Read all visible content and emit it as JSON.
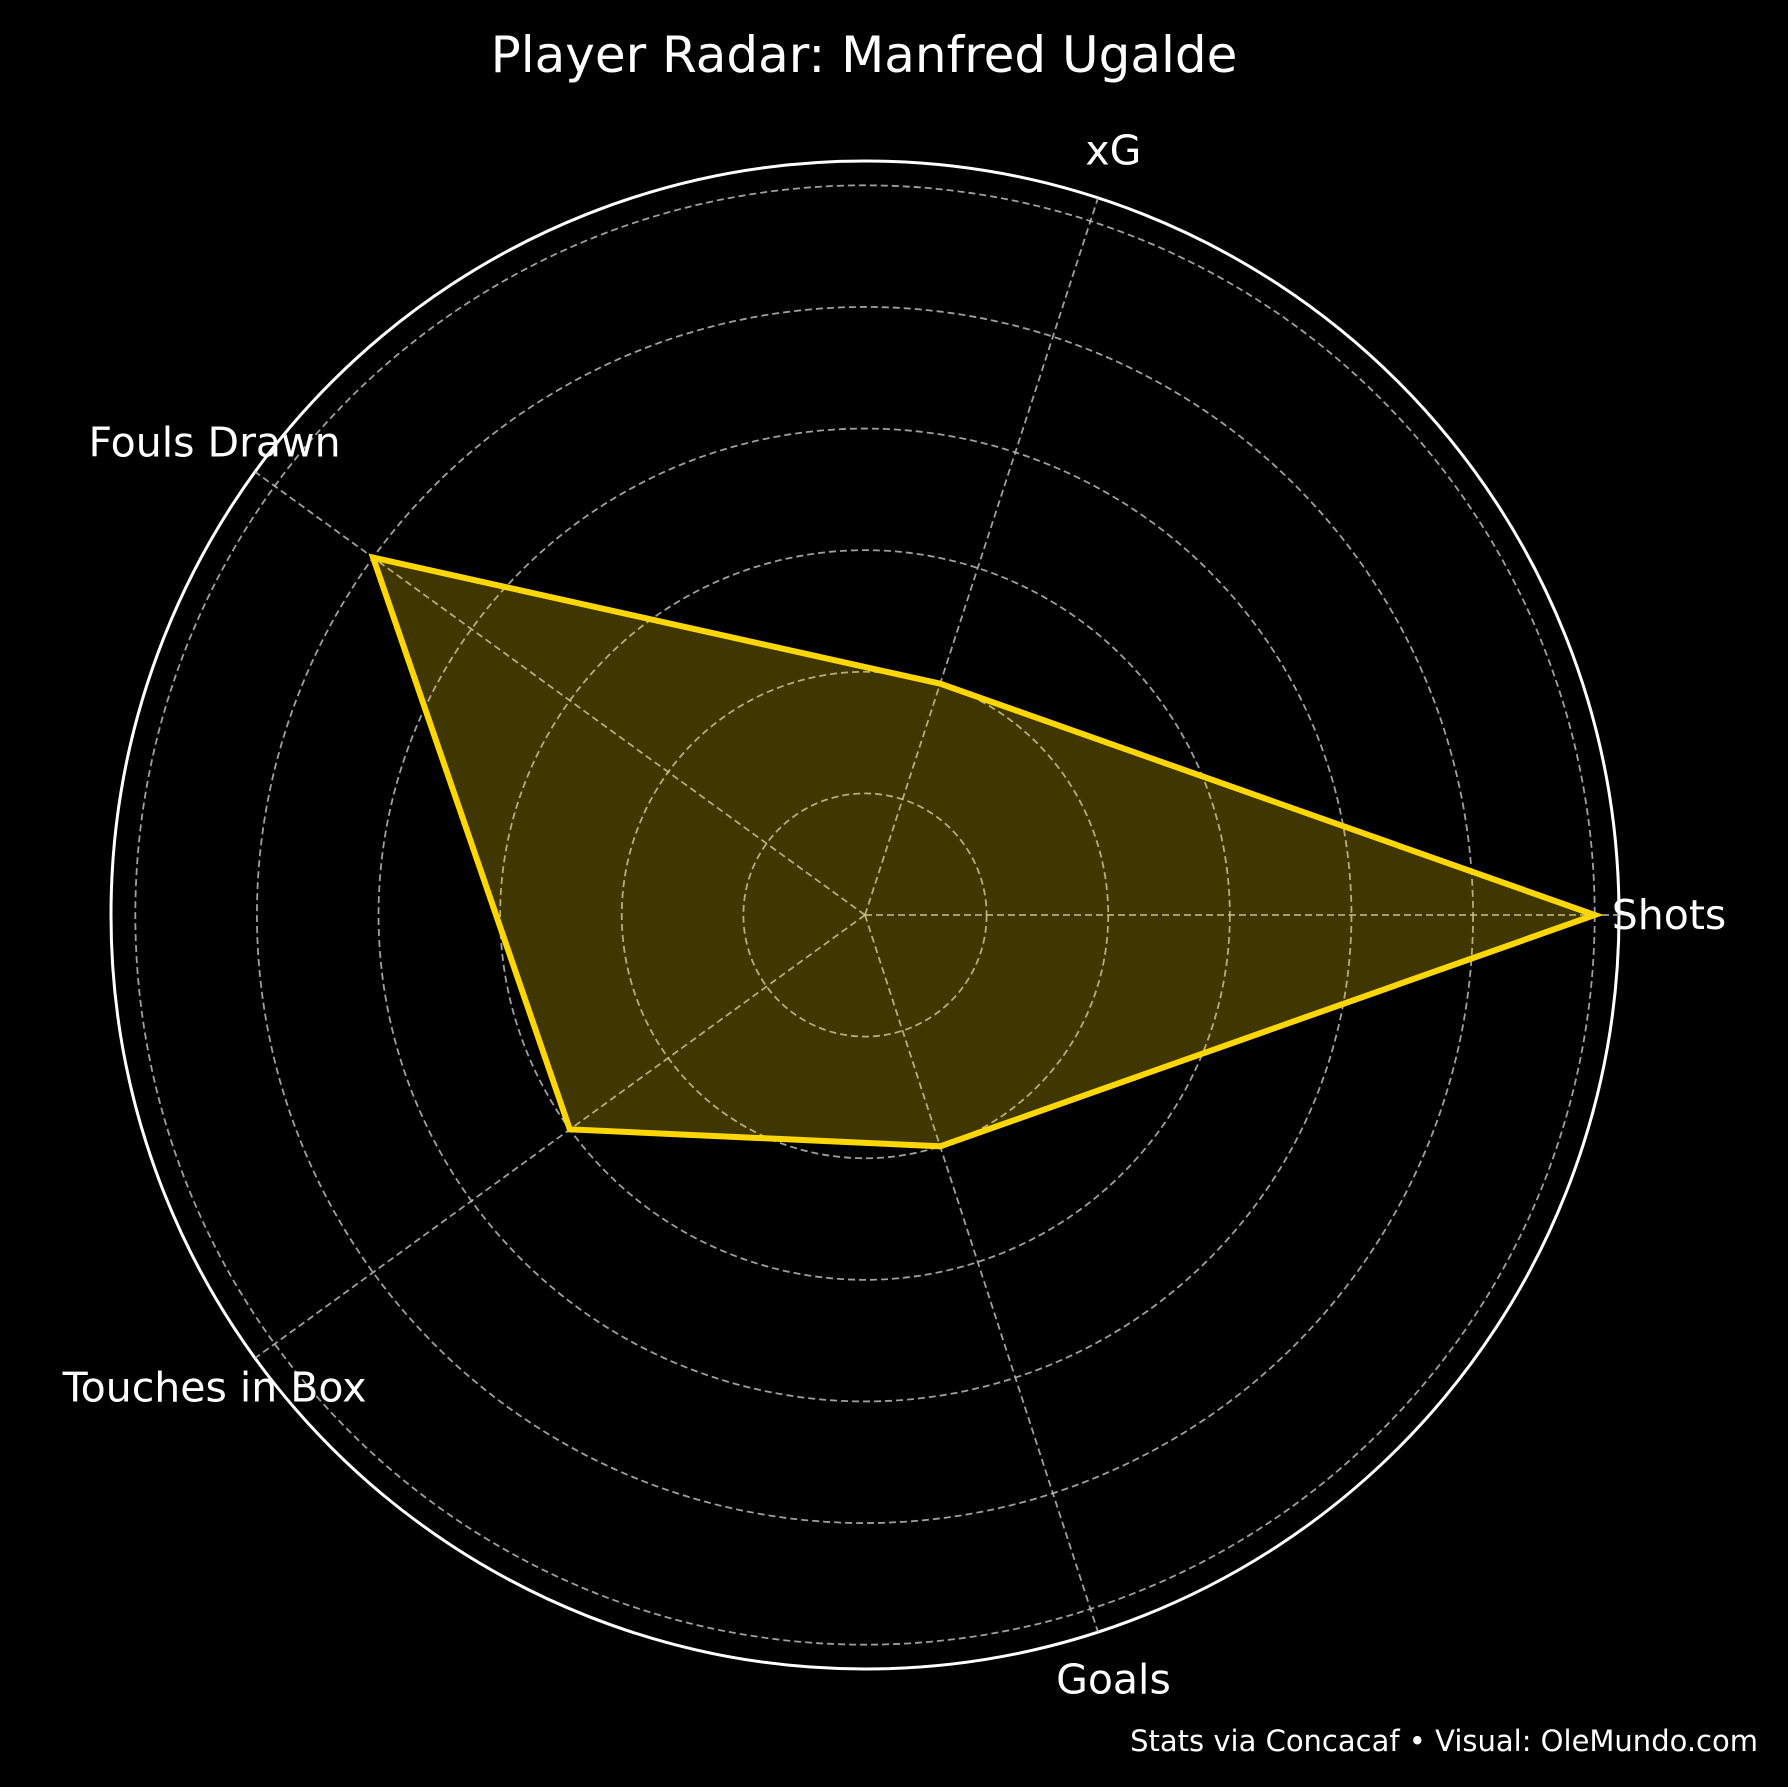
{
  "chart_data": {
    "type": "radar",
    "title": "Player Radar: Manfred Ugalde",
    "categories": [
      "Shots",
      "xG",
      "Fouls Drawn",
      "Touches in Box",
      "Goals"
    ],
    "series": [
      {
        "values": [
          6,
          2,
          5,
          3,
          2
        ]
      }
    ],
    "rlim": [
      0,
      6.2
    ],
    "rticks": [
      1,
      2,
      3,
      4,
      5,
      6
    ],
    "rtick_labels_shown": false,
    "grid": true,
    "grid_style": "dashed",
    "colors": {
      "background": "#000000",
      "line": "#FFD700",
      "fill": "#FFD700",
      "fill_alpha": 0.25,
      "grid": "#BBBBBB",
      "frame": "#FFFFFF"
    },
    "footer": "Stats via Concacaf • Visual: OleMundo.com"
  }
}
